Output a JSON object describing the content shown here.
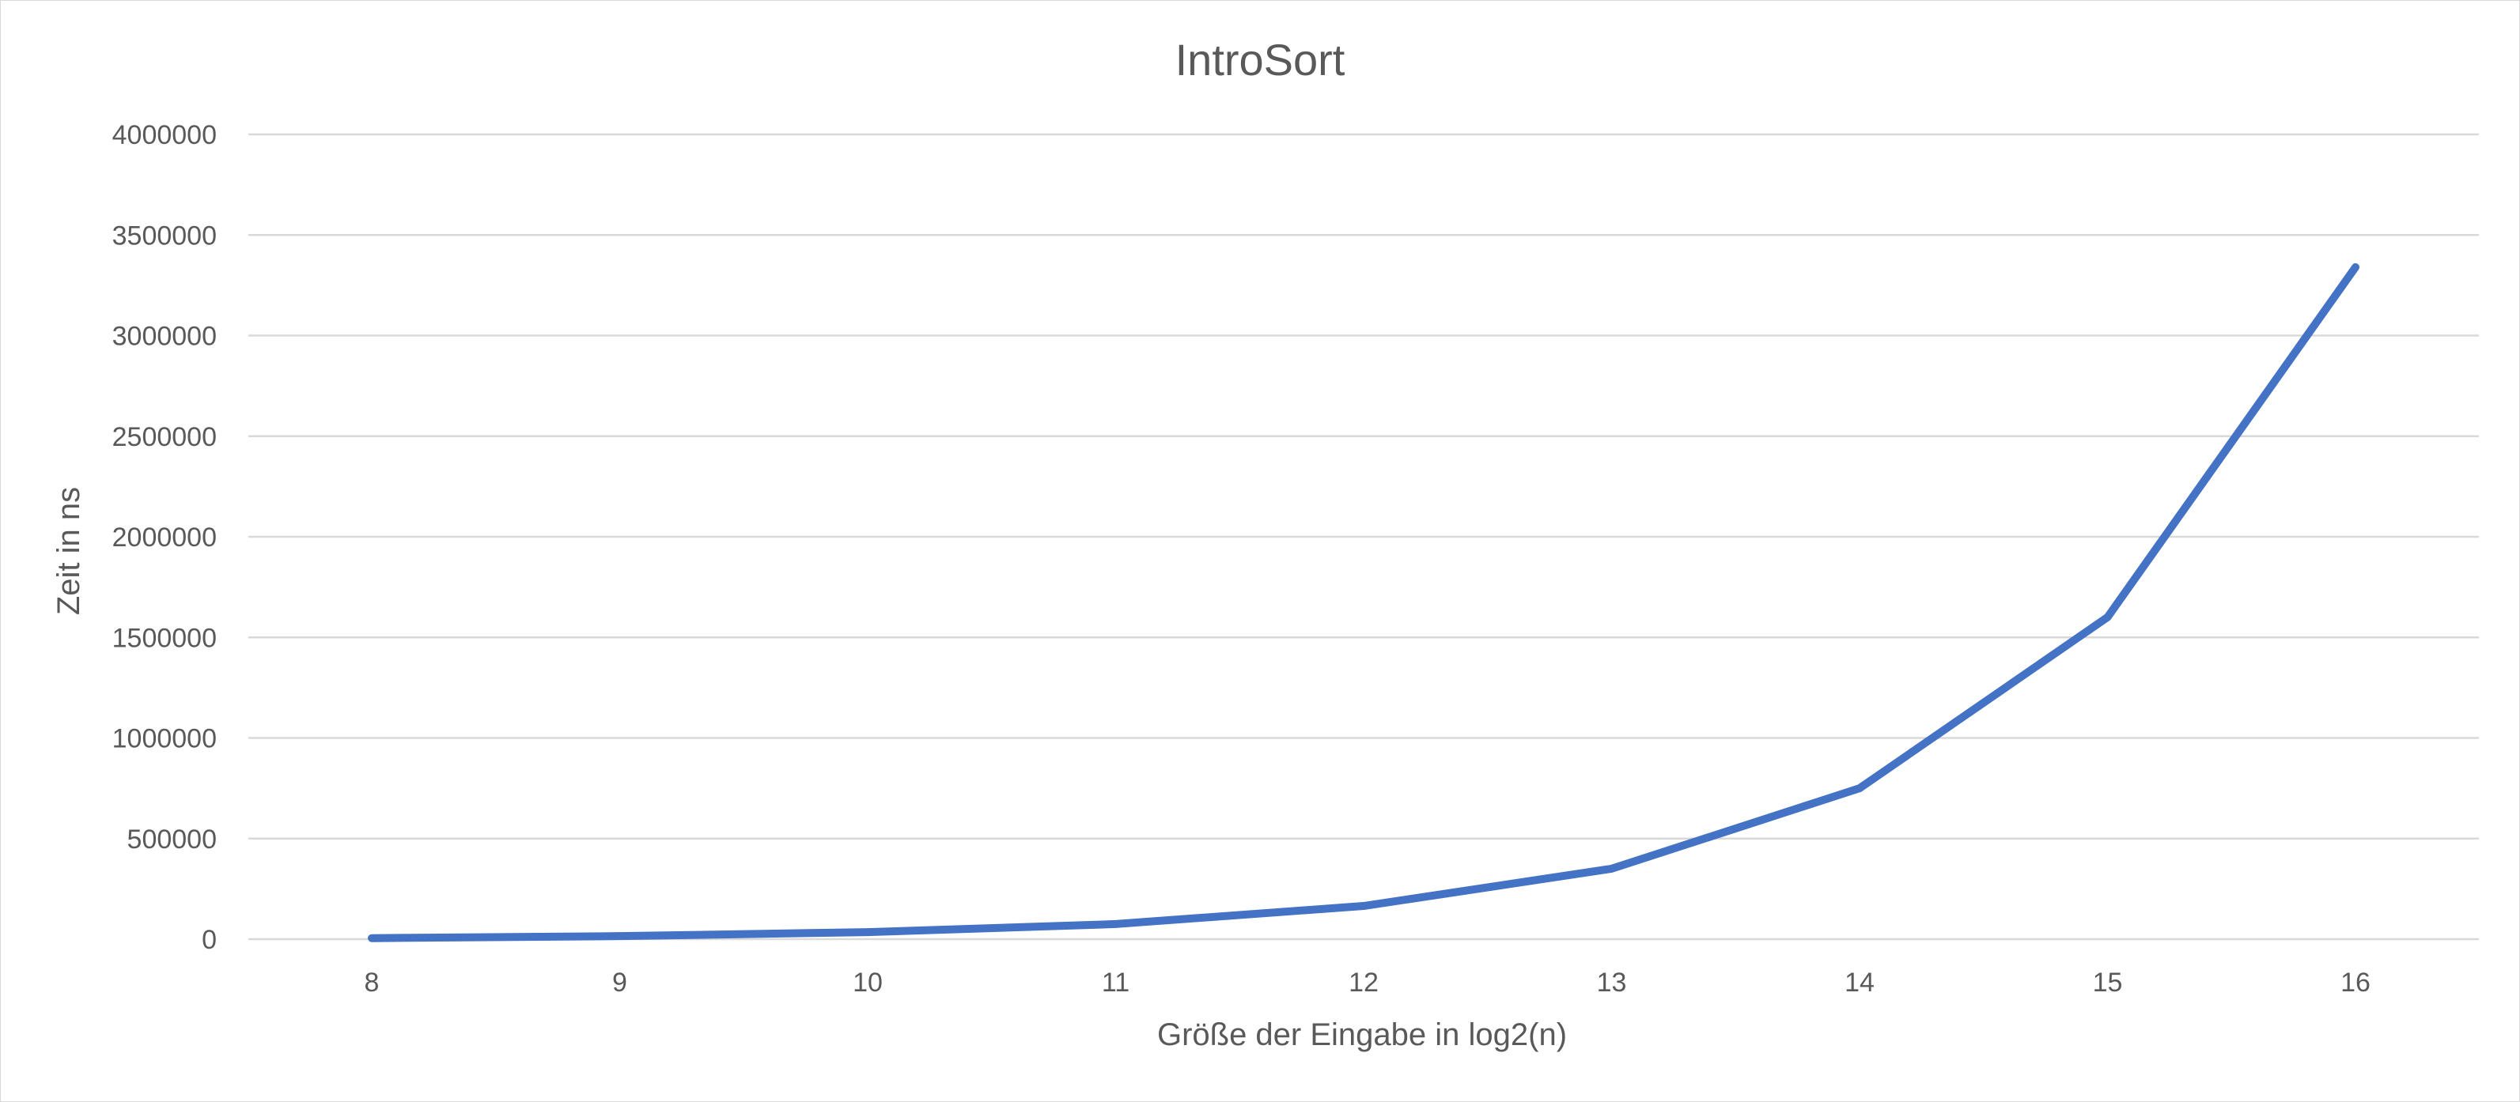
{
  "chart_data": {
    "type": "line",
    "title": "IntroSort",
    "xlabel": "Größe der Eingabe in log2(n)",
    "ylabel": "Zeit in ns",
    "categories": [
      "8",
      "9",
      "10",
      "11",
      "12",
      "13",
      "14",
      "15",
      "16"
    ],
    "series": [
      {
        "values": [
          5000,
          15000,
          35000,
          75000,
          165000,
          350000,
          750000,
          1600000,
          3340000
        ],
        "color": "#4472c4"
      }
    ],
    "ylim": [
      0,
      4000000
    ],
    "yticks": [
      "0",
      "500000",
      "1000000",
      "1500000",
      "2000000",
      "2500000",
      "3000000",
      "3500000",
      "4000000"
    ],
    "grid": true,
    "legend": "none"
  }
}
